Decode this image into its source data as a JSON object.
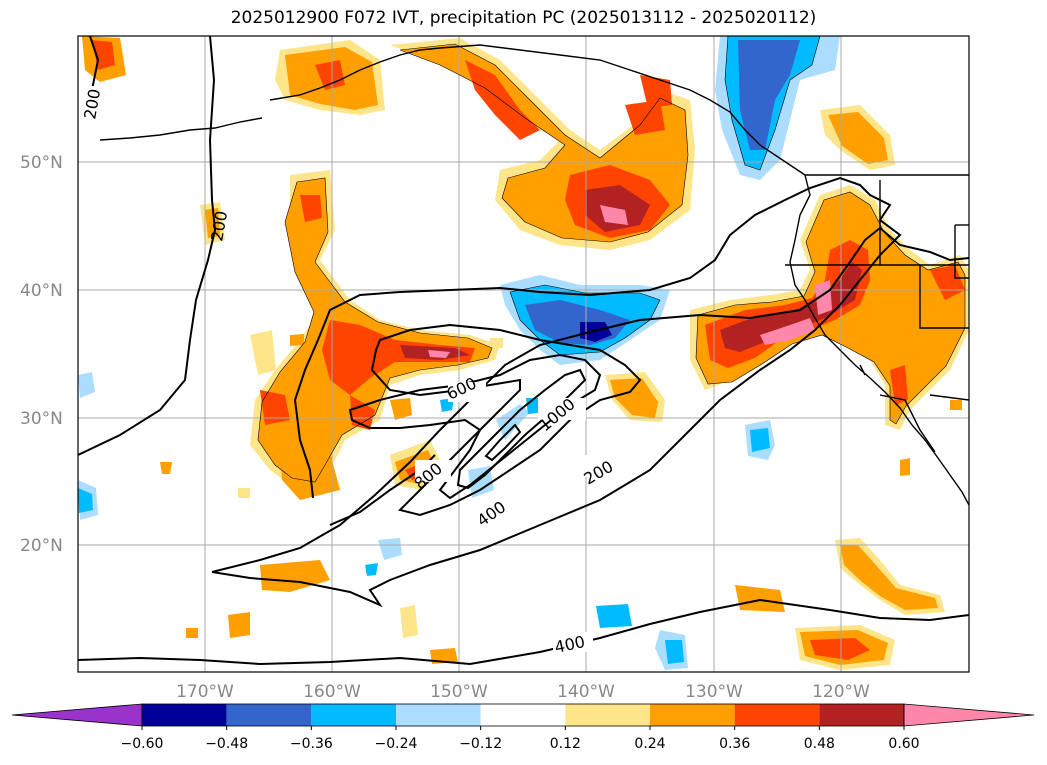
{
  "title": "2025012900 F072 IVT, precipitation PC (2025013112 - 2025020112)",
  "lat_labels": [
    "50°N",
    "40°N",
    "30°N",
    "20°N"
  ],
  "lon_labels": [
    "170°W",
    "160°W",
    "150°W",
    "140°W",
    "130°W",
    "120°W"
  ],
  "colorbar": {
    "tick_labels": [
      "−0.60",
      "−0.48",
      "−0.36",
      "−0.24",
      "−0.12",
      "0.12",
      "0.24",
      "0.36",
      "0.48",
      "0.60"
    ],
    "colors": [
      "#9933cc",
      "#000099",
      "#3366cc",
      "#00bbff",
      "#aaddff",
      "#ffffff",
      "#ffe58a",
      "#ff9f00",
      "#ff4400",
      "#b22222",
      "#ff88aa"
    ]
  },
  "contour_labels": {
    "c200_a": "200",
    "c200_b": "200",
    "c200_c": "200",
    "c400_a": "400",
    "c400_b": "400",
    "c600": "600",
    "c800": "800",
    "c1000": "1000"
  },
  "colors": {
    "grid": "#aaaaaa",
    "contour": "#000000",
    "coast": "#000000"
  }
}
